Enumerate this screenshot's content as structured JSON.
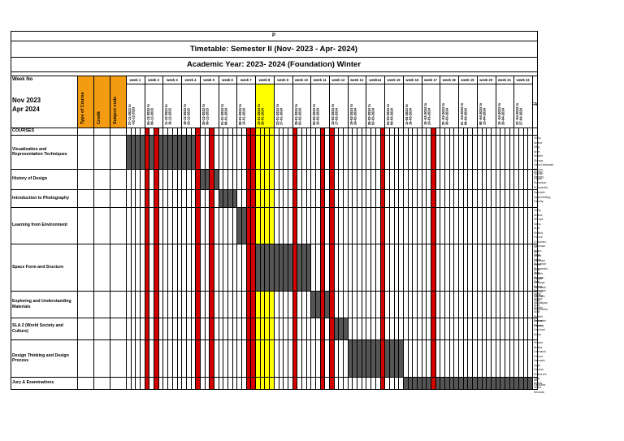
{
  "page_letter": "P",
  "title": "Timetable: Semester II (Nov- 2023 - Apr- 2024)",
  "subtitle": "Academic Year: 2023- 2024 (Foundation) Winter",
  "week_no_label": "Week No",
  "term_label": "Nov 2023\nApr 2024",
  "type_of_course_label": "Type of Course",
  "credit_label": "Credit",
  "subject_code_label": "Subject code",
  "faculties_label": "FACULTIES INVOLVED",
  "courses_label": "COURSES",
  "colors": {
    "orange": "#f39c12",
    "yellow": "#ffff00",
    "red": "#d40000",
    "dark": "#555555"
  },
  "weeks": [
    {
      "label": "week 1",
      "dates": "27-11-2023 to\n-02-12-2023",
      "color": ""
    },
    {
      "label": "week 2",
      "dates": "04-12-2023 to\n09-12-2023",
      "color": ""
    },
    {
      "label": "week 3",
      "dates": "11-12-2023 to\n16-12-2023",
      "color": ""
    },
    {
      "label": "week 4",
      "dates": "18-12-2023 to\n23-12-2023",
      "color": ""
    },
    {
      "label": "week 5",
      "dates": "25-12-2023 to\n30-12-2023",
      "color": ""
    },
    {
      "label": "week 6",
      "dates": "01-01-2024 to\n06-01-2024",
      "color": ""
    },
    {
      "label": "week 7",
      "dates": "08-01-2024 to\n13-01-2024",
      "color": ""
    },
    {
      "label": "week 8",
      "dates": "15-01-2024 to\n20-01-2024",
      "color": "yellow"
    },
    {
      "label": "week 9",
      "dates": "22-01-2024 to\n27-01-2024",
      "color": ""
    },
    {
      "label": "week 10",
      "dates": "29-01-2024 to\n03-02-2024",
      "color": ""
    },
    {
      "label": "week 11",
      "dates": "05-02-2024 to\n10-02-2024",
      "color": ""
    },
    {
      "label": "week 12",
      "dates": "12-02-2024 to\n17-02-2024",
      "color": ""
    },
    {
      "label": "week 13",
      "dates": "19-02-2024 to\n24-02-2024",
      "color": ""
    },
    {
      "label": "week14",
      "dates": "26-02-2024 to\n02-03-2024",
      "color": ""
    },
    {
      "label": "week 15",
      "dates": "04-03-2024 to\n09-03-2024",
      "color": ""
    },
    {
      "label": "week 16",
      "dates": "11-03-2024 to\n16-03-2024",
      "color": ""
    },
    {
      "label": "week 17",
      "dates": "18 -03-2024 to\n23-03-2024",
      "color": ""
    },
    {
      "label": "week 18",
      "dates": "25 -03-2024 to\n30-03-2024",
      "color": ""
    },
    {
      "label": "week 19",
      "dates": "01 -04-2024 to\n06-04-2024",
      "color": ""
    },
    {
      "label": "week 20",
      "dates": "08 -04-2024 to\n13-04-2024",
      "color": ""
    },
    {
      "label": "week 21",
      "dates": "15 -04-2024 to\n20-04-2024",
      "color": ""
    },
    {
      "label": "week 22",
      "dates": "22 -04-2024 to\n27-04-2024",
      "color": ""
    }
  ],
  "red_columns": [
    4,
    6,
    15,
    18,
    26,
    27,
    36,
    42,
    44,
    55,
    66
  ],
  "courses": [
    {
      "name": "Visualization and\nRepresentation Techniques",
      "faculty": "Vishy Anand Nag, Arpit Shaikh\nShreya Saha,Debasish Ghorui, Suman Gupta,\nSuvankar Pramanick,",
      "dark_start": 0,
      "dark_end": 15
    },
    {
      "name": "History of Design",
      "faculty": "Suman Pandey",
      "dark_start": 16,
      "dark_end": 19
    },
    {
      "name": "Introduction to Photography",
      "faculty": "Saurabh Vyas/Visiting Faculty",
      "dark_start": 20,
      "dark_end": 23
    },
    {
      "name": "Learning from Environment",
      "faculty": "Vishy Anand,  Shreya Saha, Arpit Shaikh,\nParoul Chauhan, Harshad Mane, Yash Saklo,\nSuvankar Pramanick, Jogi Bhogan, Zeal\nMehta, Debasish Ghorui",
      "dark_start": 24,
      "dark_end": 27
    },
    {
      "name": "Space Form and Sructure",
      "faculty": "Dr. Anil Sinha\nHarshad Mane\nArpit Shaikh\nHardik Shreeya\nDebasish Ghorui\nSaurabh Vyas\nArun Kushwaha",
      "dark_start": 28,
      "dark_end": 39
    },
    {
      "name": "Exploring and Understanding\nMaterials",
      "faculty": "Vishy Anand\nMaulikiyan Shaikh\nArpit Shaikh                    Debasish\nGhorui\nHarshad Mane",
      "dark_start": 40,
      "dark_end": 43
    },
    {
      "name": "SLA 2 (World Society and\nCulture)",
      "faculty": "Suman Pandey",
      "dark_start": 44,
      "dark_end": 47
    },
    {
      "name": "Design Thinking and Design\nProcess",
      "faculty": "Pritesh Bhatta\nDebasish Ghorui\nSaurabh Vyas\nHarsha Shamram\nZeal Mehta\nNisha Mevada",
      "dark_start": 48,
      "dark_end": 59
    },
    {
      "name": "Jury & Examinations",
      "faculty": "All Faculties",
      "dark_start": 60,
      "dark_end": 87
    }
  ]
}
